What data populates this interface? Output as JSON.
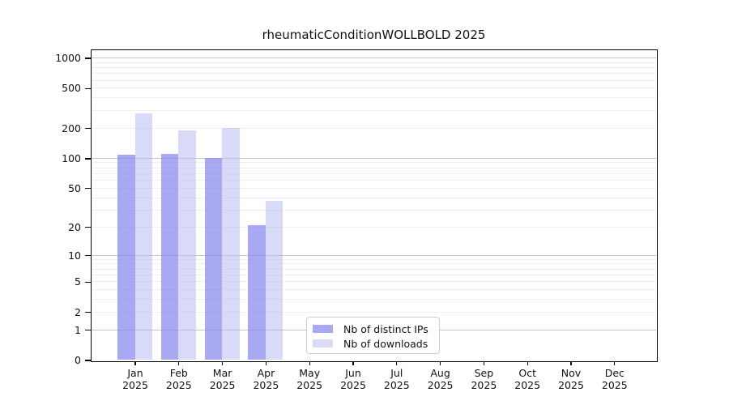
{
  "title": "rheumaticConditionWOLLBOLD 2025",
  "legend": {
    "items": [
      {
        "label": "Nb of distinct IPs",
        "color": "#a9a9f3"
      },
      {
        "label": "Nb of downloads",
        "color": "#d9d9f8"
      }
    ]
  },
  "chart_data": {
    "type": "bar",
    "title": "rheumaticConditionWOLLBOLD 2025",
    "categories": [
      "Jan",
      "Feb",
      "Mar",
      "Apr",
      "May",
      "Jun",
      "Jul",
      "Aug",
      "Sep",
      "Oct",
      "Nov",
      "Dec"
    ],
    "year": "2025",
    "series": [
      {
        "name": "Nb of distinct IPs",
        "values": [
          108,
          110,
          100,
          21,
          0,
          0,
          0,
          0,
          0,
          0,
          0,
          0
        ],
        "fill": "rgba(136,136,238,0.72)",
        "legend_color": "#a9a9f3"
      },
      {
        "name": "Nb of downloads",
        "values": [
          280,
          190,
          202,
          37,
          0,
          0,
          0,
          0,
          0,
          0,
          0,
          0
        ],
        "fill": "rgba(180,180,242,0.5)",
        "legend_color": "#d9d9f8"
      }
    ],
    "y_scale": "log10(value+1)",
    "y_ticks": [
      0,
      1,
      2,
      5,
      10,
      20,
      50,
      100,
      200,
      500,
      1000
    ],
    "ylim": [
      0,
      1000
    ],
    "grid": true,
    "grid_major_at": [
      1,
      10,
      100,
      1000
    ],
    "legend_position": "lower center",
    "xlabel": "",
    "ylabel": ""
  }
}
